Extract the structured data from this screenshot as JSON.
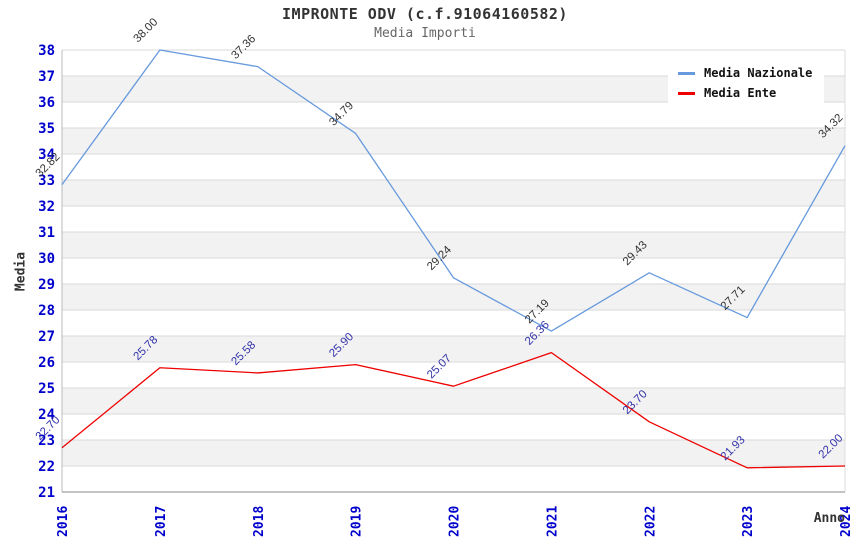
{
  "header": {
    "title": "IMPRONTE ODV (c.f.91064160582)",
    "subtitle": "Media Importi"
  },
  "legend": {
    "items": [
      {
        "label": "Media Nazionale",
        "color": "#6699dd"
      },
      {
        "label": "Media Ente",
        "color": "#ee0000"
      }
    ]
  },
  "axes": {
    "y_title": "Media",
    "x_title": "Anno",
    "tick_color": "#0000cc"
  },
  "chart_data": {
    "type": "line",
    "title": "IMPRONTE ODV (c.f.91064160582)",
    "subtitle": "Media Importi",
    "xlabel": "Anno",
    "ylabel": "Media",
    "x": [
      "2016",
      "2017",
      "2018",
      "2019",
      "2020",
      "2021",
      "2022",
      "2023",
      "2024"
    ],
    "series": [
      {
        "name": "Media Nazionale",
        "color": "#6699dd",
        "label_color": "#333333",
        "values": [
          32.82,
          38.0,
          37.36,
          34.79,
          29.24,
          27.19,
          29.43,
          27.71,
          34.32
        ]
      },
      {
        "name": "Media Ente",
        "color": "#ee0000",
        "label_color": "#3333aa",
        "values": [
          22.7,
          25.78,
          25.58,
          25.9,
          25.07,
          26.36,
          23.7,
          21.93,
          22.0
        ]
      }
    ],
    "ylim": [
      21,
      38
    ],
    "y_tick_step": 1,
    "grid": true,
    "band_colors": [
      "#ffffff",
      "#f2f2f2"
    ],
    "gridline_color": "#d9d9d9",
    "legend_position": "top-right"
  }
}
